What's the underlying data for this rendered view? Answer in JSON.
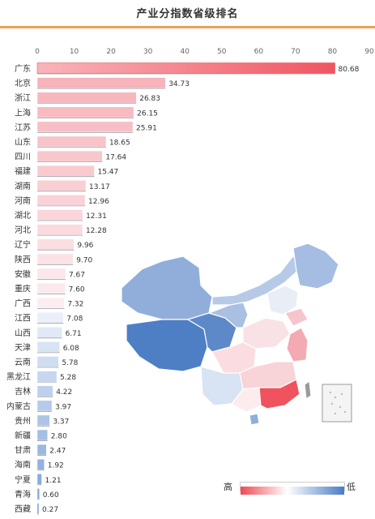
{
  "title": "产业分指数省级排名",
  "legend": {
    "high_label": "高",
    "low_label": "低",
    "colors": {
      "high": "#f05560",
      "mid": "#ffffff",
      "low": "#4a7cc4"
    }
  },
  "chart_data": {
    "type": "bar",
    "orientation": "horizontal",
    "title": "产业分指数省级排名",
    "xlim": [
      0,
      90
    ],
    "xticks": [
      0,
      10,
      20,
      30,
      40,
      50,
      60,
      70,
      80,
      90
    ],
    "categories": [
      "广东",
      "北京",
      "浙江",
      "上海",
      "江苏",
      "山东",
      "四川",
      "福建",
      "湖南",
      "河南",
      "湖北",
      "河北",
      "辽宁",
      "陕西",
      "安徽",
      "重庆",
      "广西",
      "江西",
      "山西",
      "天津",
      "云南",
      "黑龙江",
      "吉林",
      "内蒙古",
      "贵州",
      "新疆",
      "甘肃",
      "海南",
      "宁夏",
      "青海",
      "西藏"
    ],
    "values": [
      80.68,
      34.73,
      26.83,
      26.15,
      25.91,
      18.65,
      17.64,
      15.47,
      13.17,
      12.96,
      12.31,
      12.28,
      9.96,
      9.7,
      7.67,
      7.6,
      7.32,
      7.08,
      6.71,
      6.08,
      5.78,
      5.28,
      4.22,
      3.97,
      3.37,
      2.8,
      2.47,
      1.92,
      1.21,
      0.6,
      0.27
    ],
    "value_labels": [
      "80.68",
      "34.73",
      "26.83",
      "26.15",
      "25.91",
      "18.65",
      "17.64",
      "15.47",
      "13.17",
      "12.96",
      "12.31",
      "12.28",
      "9.96",
      "9.70",
      "7.67",
      "7.60",
      "7.32",
      "7.08",
      "6.71",
      "6.08",
      "5.78",
      "5.28",
      "4.22",
      "3.97",
      "3.37",
      "2.80",
      "2.47",
      "1.92",
      "1.21",
      "0.60",
      "0.27"
    ],
    "grid": false,
    "color_scale": "diverging red-white-blue, red = high, blue = low"
  }
}
